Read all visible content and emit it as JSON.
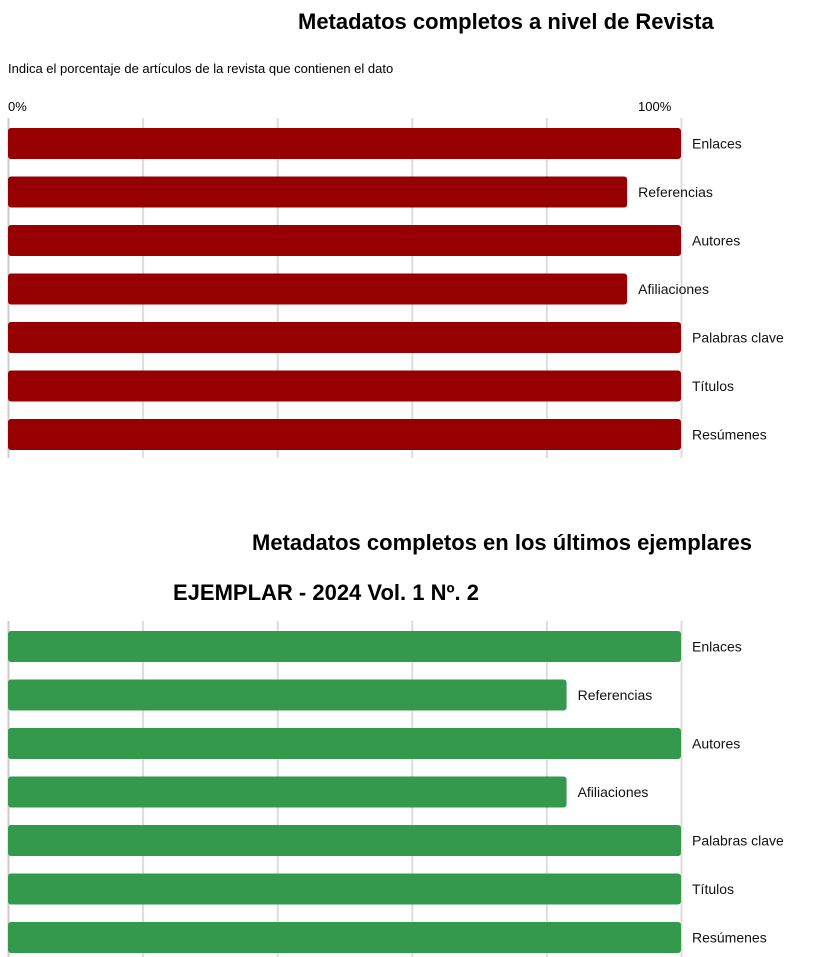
{
  "chart_data": [
    {
      "type": "bar",
      "orientation": "horizontal",
      "title": "Metadatos completos a nivel de Revista",
      "subtitle": "Indica el porcentaje de artículos de la revista que contienen el dato",
      "tick_labels": [
        "0%",
        "100%"
      ],
      "xlim": [
        0,
        100
      ],
      "grid": true,
      "bar_color": "#960000",
      "categories": [
        "Enlaces",
        "Referencias",
        "Autores",
        "Afiliaciones",
        "Palabras clave",
        "Títulos",
        "Resúmenes"
      ],
      "values": [
        100,
        92,
        100,
        92,
        100,
        100,
        100
      ]
    },
    {
      "type": "bar",
      "orientation": "horizontal",
      "title": "Metadatos completos en los últimos ejemplares",
      "subtitle": "EJEMPLAR - 2024 Vol. 1 Nº. 2",
      "xlim": [
        0,
        100
      ],
      "grid": true,
      "bar_color": "#34994c",
      "categories": [
        "Enlaces",
        "Referencias",
        "Autores",
        "Afiliaciones",
        "Palabras clave",
        "Títulos",
        "Resúmenes"
      ],
      "values": [
        100,
        83,
        100,
        83,
        100,
        100,
        100
      ]
    }
  ]
}
